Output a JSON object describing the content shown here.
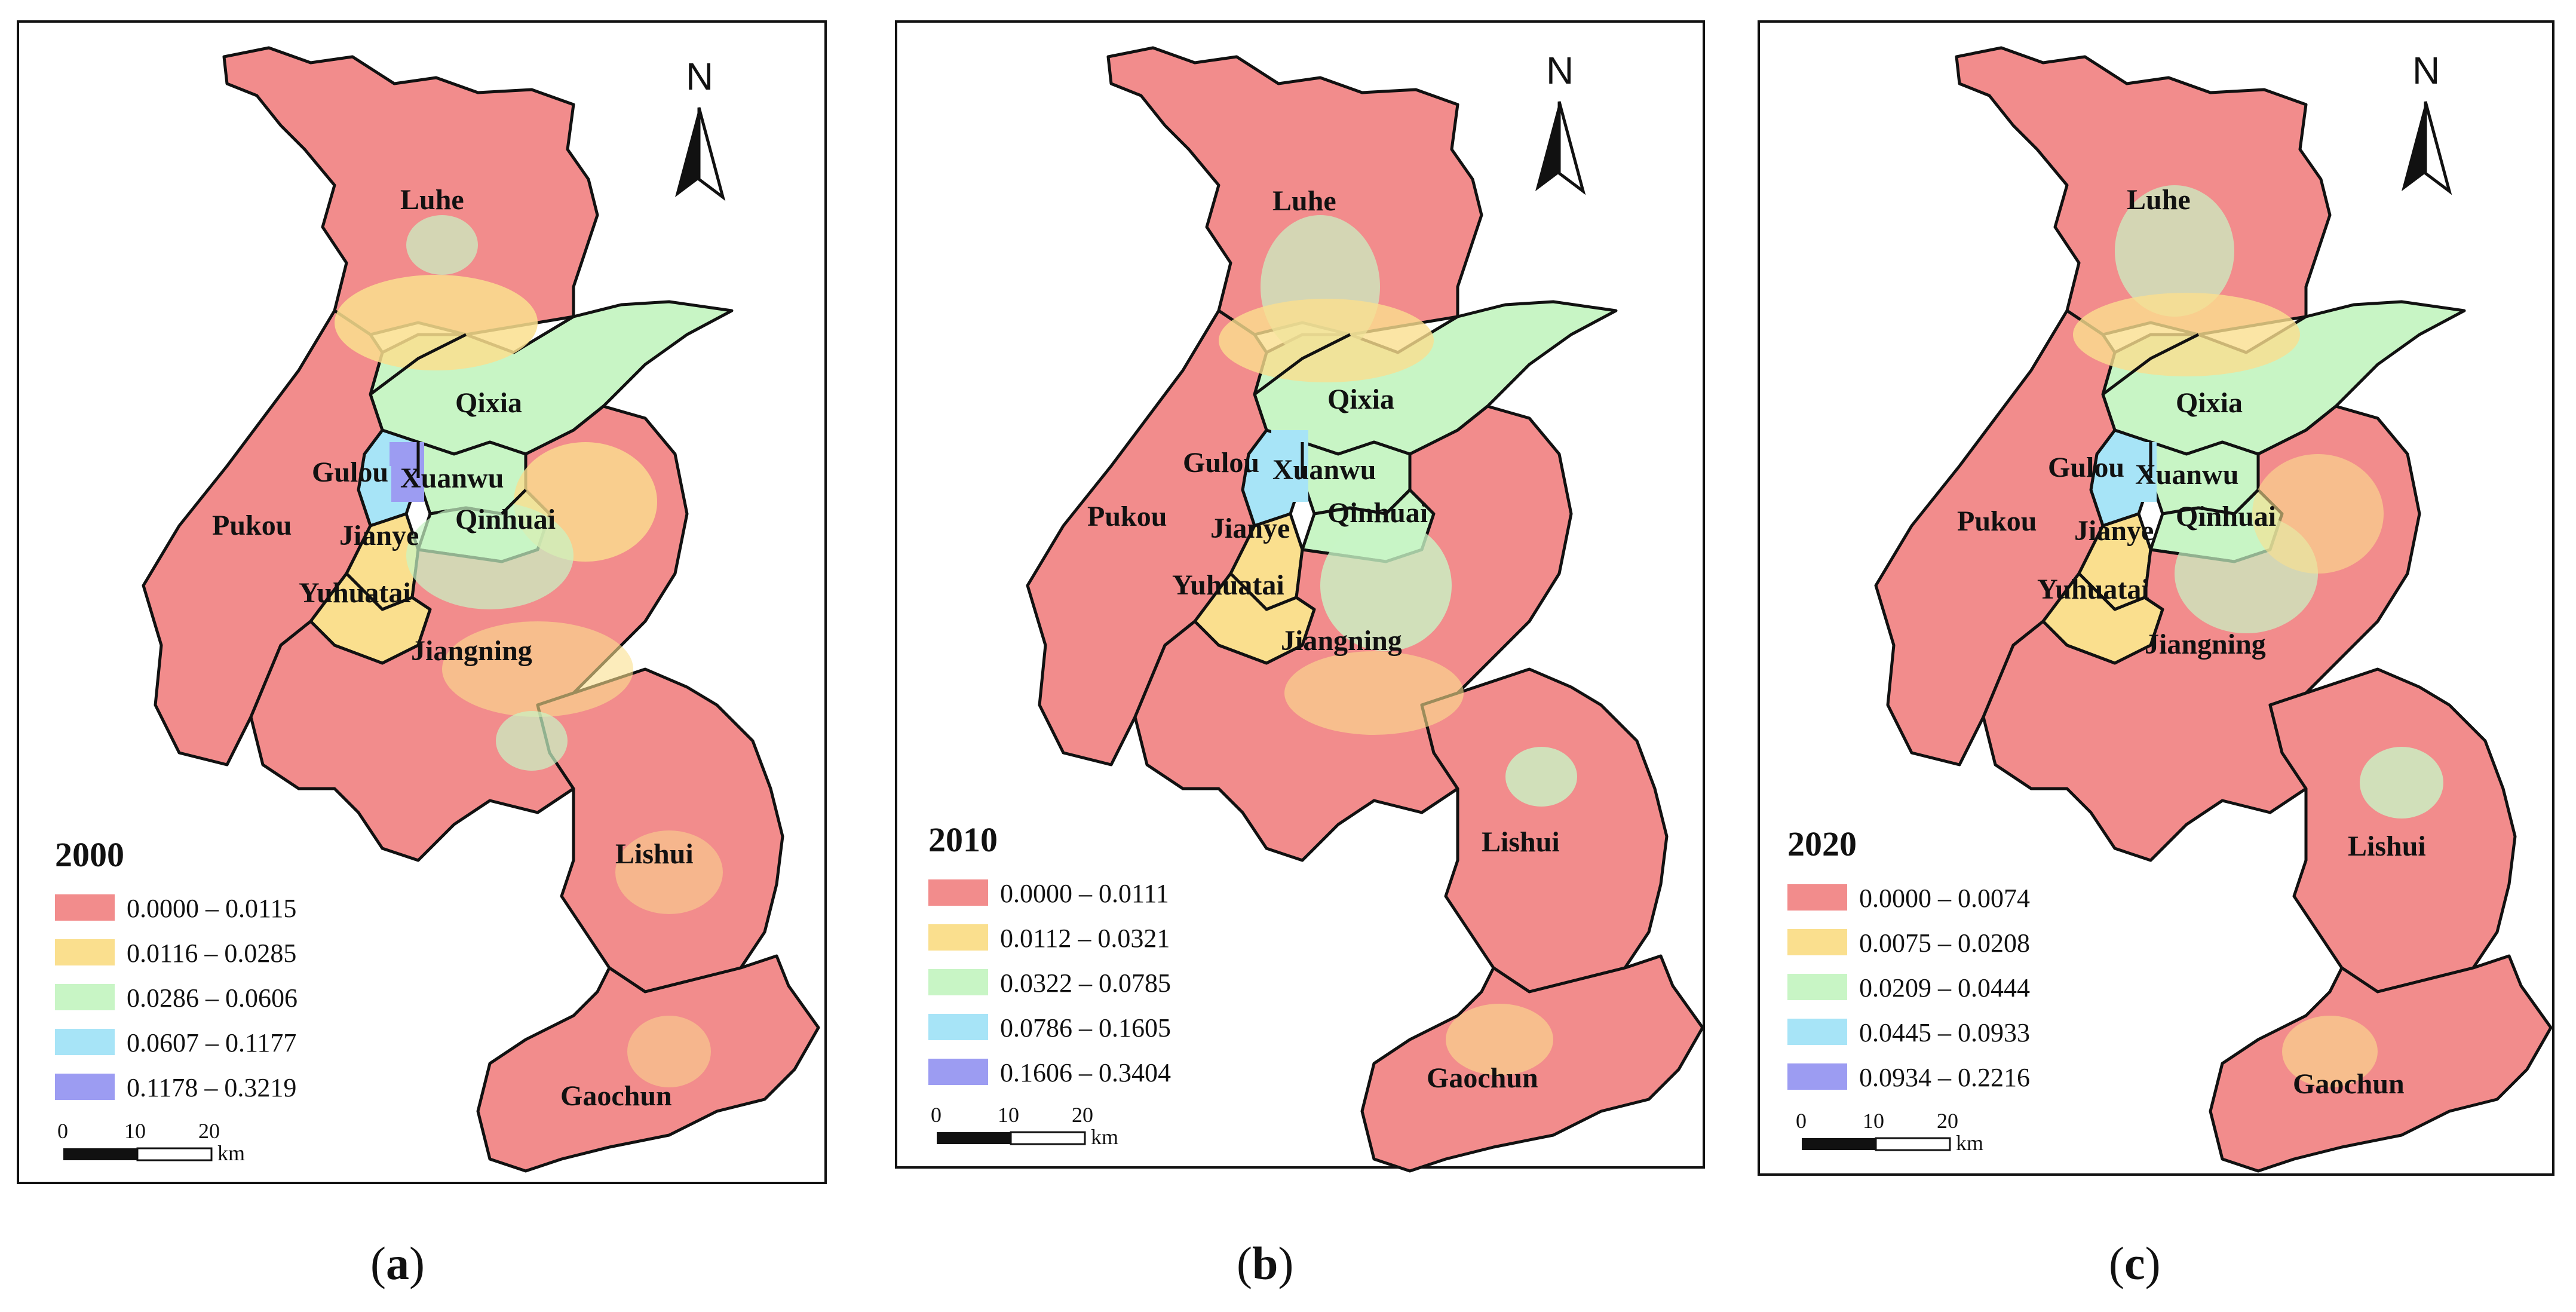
{
  "map": {
    "north_label": "N",
    "scale": {
      "ticks": [
        "0",
        "10",
        "20"
      ],
      "unit": "km"
    },
    "colors": {
      "class1": "#F28C8C",
      "class2": "#FADF8E",
      "class3": "#C8F5C5",
      "class4": "#A7E4F7",
      "class5": "#9C9CF2",
      "outline": "#111111"
    },
    "districts": [
      "Luhe",
      "Qixia",
      "Gulou",
      "Xuanwu",
      "Pukou",
      "Jianye",
      "Qinhuai",
      "Yuhuatai",
      "Jiangning",
      "Lishui",
      "Gaochun"
    ]
  },
  "panels": [
    {
      "year": "2000",
      "caption_letter": "a",
      "legend": [
        "0.0000 – 0.0115",
        "0.0116 – 0.0285",
        "0.0286 – 0.0606",
        "0.0607 – 0.1177",
        "0.1178 – 0.3219"
      ]
    },
    {
      "year": "2010",
      "caption_letter": "b",
      "legend": [
        "0.0000 – 0.0111",
        "0.0112 – 0.0321",
        "0.0322 – 0.0785",
        "0.0786 – 0.1605",
        "0.1606 – 0.3404"
      ]
    },
    {
      "year": "2020",
      "caption_letter": "c",
      "legend": [
        "0.0000 – 0.0074",
        "0.0075 – 0.0208",
        "0.0209 – 0.0444",
        "0.0445 – 0.0933",
        "0.0934 – 0.2216"
      ]
    }
  ]
}
